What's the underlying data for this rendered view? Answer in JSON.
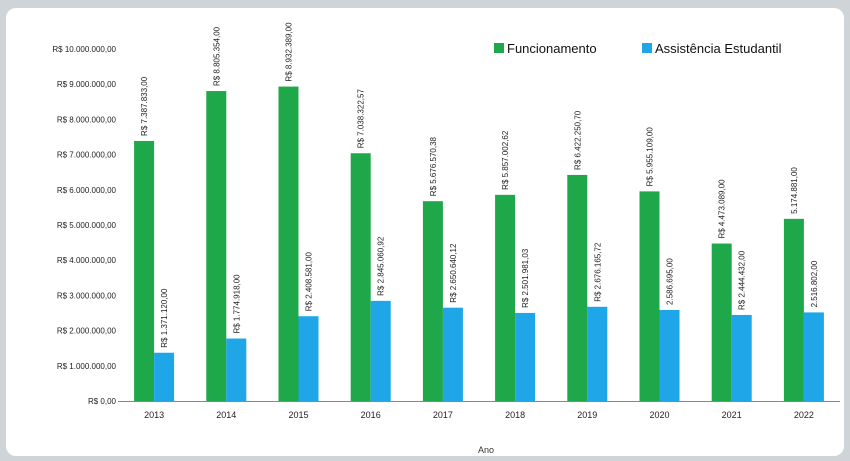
{
  "chart_data": {
    "type": "bar",
    "title": "",
    "xlabel": "Ano",
    "ylabel": "",
    "ylim": [
      0,
      10000000
    ],
    "yticks": [
      0,
      1000000,
      2000000,
      3000000,
      4000000,
      5000000,
      6000000,
      7000000,
      8000000,
      9000000,
      10000000
    ],
    "ytick_labels": [
      "R$ 0,00",
      "R$ 1.000.000,00",
      "R$ 2.000.000,00",
      "R$ 3.000.000,00",
      "R$ 4.000.000,00",
      "R$ 5.000.000,00",
      "R$ 6.000.000,00",
      "R$ 7.000.000,00",
      "R$ 8.000.000,00",
      "R$ 9.000.000,00",
      "R$ 10.000.000,00"
    ],
    "categories": [
      "2013",
      "2014",
      "2015",
      "2016",
      "2017",
      "2018",
      "2019",
      "2020",
      "2021",
      "2022"
    ],
    "grid": false,
    "legend_position": "top-right",
    "series": [
      {
        "name": "Funcionamento",
        "color": "#1ea84a",
        "values": [
          7387833,
          8805354,
          8932389,
          7038322.57,
          5676570.38,
          5857002.62,
          6422250.7,
          5955109,
          4473089,
          5174881
        ],
        "labels": [
          "R$ 7.387.833,00",
          "R$ 8.805.354,00",
          "R$ 8.932.389,00",
          "R$ 7.038.322,57",
          "R$ 5.676.570,38",
          "R$ 5.857.002,62",
          "R$ 6.422.250,70",
          "R$ 5.955.109,00",
          "R$ 4.473.089,00",
          "5.174.881,00"
        ]
      },
      {
        "name": "Assistência Estudantil",
        "color": "#1fa6e8",
        "values": [
          1371120,
          1774918,
          2408581,
          2845060.92,
          2650640.12,
          2501981.03,
          2676165.72,
          2586695,
          2444432,
          2516802
        ],
        "labels": [
          "R$ 1.371.120,00",
          "R$ 1.774.918,00",
          "R$ 2.408.581,00",
          "R$ 2.845.060,92",
          "R$ 2.650.640,12",
          "R$ 2.501.981,03",
          "R$ 2.676.165,72",
          "2.586.695,00",
          "R$ 2.444.432,00",
          "2.516.802,00"
        ]
      }
    ]
  }
}
